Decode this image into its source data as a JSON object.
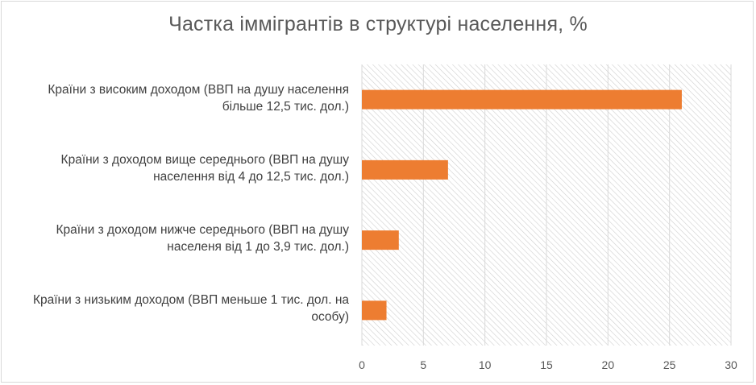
{
  "chart_data": {
    "type": "bar",
    "orientation": "horizontal",
    "title": "Частка іммігрантів в структурі населення, %",
    "categories": [
      "Країни з високим доходом (ВВП на душу населення більше 12,5 тис. дол.)",
      "Країни з доходом вище середнього (ВВП на душу населення від 4 до 12,5 тис. дол.)",
      "Країни з доходом нижче середнього (ВВП на душу населеня від 1 до 3,9 тис. дол.)",
      "Країни з низьким доходом (ВВП меньше 1 тис. дол. на особу)"
    ],
    "category_lines": [
      [
        "Країни з високим доходом (ВВП на душу населення",
        "більше 12,5 тис. дол.)"
      ],
      [
        "Країни з доходом вище середнього (ВВП на душу",
        "населення від 4 до 12,5 тис. дол.)"
      ],
      [
        "Країни з доходом нижче середнього (ВВП на душу",
        "населеня від 1 до 3,9 тис. дол.)"
      ],
      [
        "Країни з низьким доходом (ВВП меньше 1 тис. дол. на",
        "особу)"
      ]
    ],
    "values": [
      26,
      7,
      3,
      2
    ],
    "xlim": [
      0,
      30
    ],
    "xticks": [
      "0",
      "5",
      "10",
      "15",
      "20",
      "25",
      "30"
    ],
    "grid": true,
    "plot_background": "diagonal-hatch",
    "bar_color": "#ED7D31",
    "grid_color": "#d9d9d9"
  }
}
